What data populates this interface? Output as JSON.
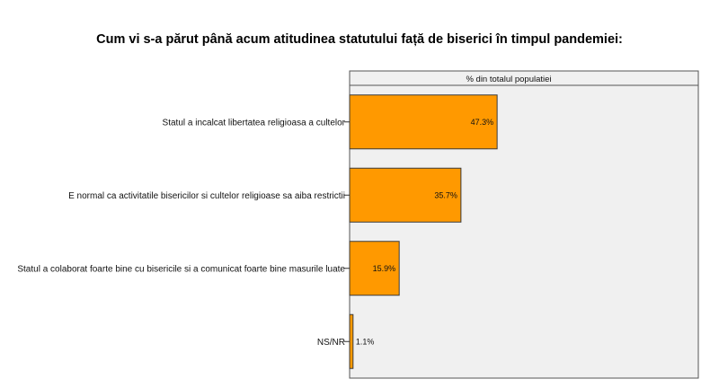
{
  "title": "Cum vi s-a părut până acum atitudinea statutului față de biserici în timpul pandemiei:",
  "chart_data": {
    "type": "bar",
    "orientation": "horizontal",
    "panel_label": "% din totalul populatiei",
    "categories": [
      "Statul a incalcat libertatea religioasa a cultelor",
      "E normal ca activitatile bisericilor si cultelor religioase sa aiba restrictii",
      "Statul a colaborat foarte bine cu bisericile si a comunicat foarte bine masurile luate",
      "NS/NR"
    ],
    "values": [
      47.3,
      35.7,
      15.9,
      1.1
    ],
    "value_labels": [
      "47.3%",
      "35.7%",
      "15.9%",
      "1.1%"
    ],
    "xlim": [
      0,
      100
    ],
    "grid": false,
    "colors": {
      "bar": "#FF9900",
      "bar_stroke": "#3a3a3a",
      "panel_bg": "#F0F0F0",
      "panel_stroke": "#555555"
    }
  }
}
